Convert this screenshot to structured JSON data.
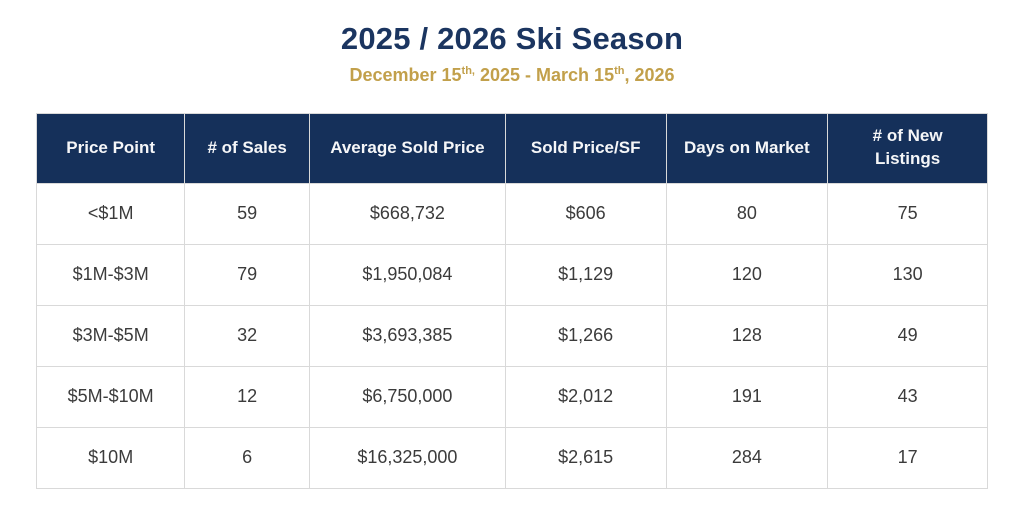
{
  "header": {
    "title": "2025 / 2026 Ski Season",
    "subtitle": {
      "prefix": "December 15",
      "sup1": "th,",
      "middle": " 2025 - March 15",
      "sup2": "th",
      "suffix": ", 2026"
    }
  },
  "colors": {
    "title_navy": "#1b3560",
    "subtitle_gold": "#c2a04b",
    "header_bg_navy": "#15305a",
    "header_text": "#f5f6f8",
    "cell_text": "#3b3b3b",
    "border_gray": "#d9d9d9"
  },
  "table": {
    "columns": [
      "Price Point",
      "# of Sales",
      "Average Sold Price",
      "Sold Price/SF",
      "Days on Market",
      "# of New Listings"
    ],
    "rows": [
      [
        "<$1M",
        "59",
        "$668,732",
        "$606",
        "80",
        "75"
      ],
      [
        "$1M-$3M",
        "79",
        "$1,950,084",
        "$1,129",
        "120",
        "130"
      ],
      [
        "$3M-$5M",
        "32",
        "$3,693,385",
        "$1,266",
        "128",
        "49"
      ],
      [
        "$5M-$10M",
        "12",
        "$6,750,000",
        "$2,012",
        "191",
        "43"
      ],
      [
        "$10M",
        "6",
        "$16,325,000",
        "$2,615",
        "284",
        "17"
      ]
    ]
  },
  "chart_data": {
    "type": "table",
    "title": "2025 / 2026 Ski Season",
    "subtitle": "December 15th, 2025 - March 15th, 2026",
    "columns": [
      "Price Point",
      "# of Sales",
      "Average Sold Price",
      "Sold Price/SF",
      "Days on Market",
      "# of New Listings"
    ],
    "rows": [
      {
        "price_point": "<$1M",
        "num_sales": 59,
        "average_sold_price": "$668,732",
        "sold_price_per_sf": "$606",
        "days_on_market": 80,
        "num_new_listings": 75
      },
      {
        "price_point": "$1M-$3M",
        "num_sales": 79,
        "average_sold_price": "$1,950,084",
        "sold_price_per_sf": "$1,129",
        "days_on_market": 120,
        "num_new_listings": 130
      },
      {
        "price_point": "$3M-$5M",
        "num_sales": 32,
        "average_sold_price": "$3,693,385",
        "sold_price_per_sf": "$1,266",
        "days_on_market": 128,
        "num_new_listings": 49
      },
      {
        "price_point": "$5M-$10M",
        "num_sales": 12,
        "average_sold_price": "$6,750,000",
        "sold_price_per_sf": "$2,012",
        "days_on_market": 191,
        "num_new_listings": 43
      },
      {
        "price_point": "$10M",
        "num_sales": 6,
        "average_sold_price": "$16,325,000",
        "sold_price_per_sf": "$2,615",
        "days_on_market": 284,
        "num_new_listings": 17
      }
    ]
  }
}
